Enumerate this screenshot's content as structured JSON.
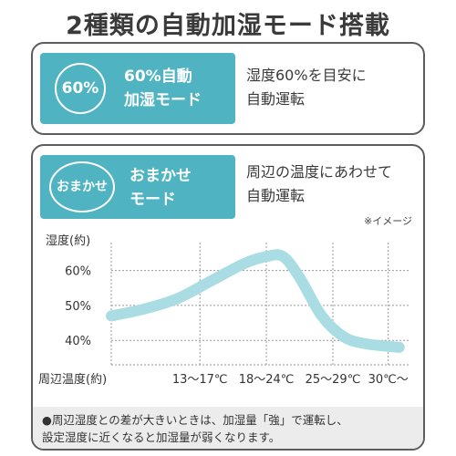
{
  "title": "2種類の自動加湿モード搭載",
  "card1": {
    "badge": "60%",
    "mode_line1": "60%自動",
    "mode_line2": "加湿モード",
    "desc_line1": "湿度60%を目安に",
    "desc_line2": "自動運転"
  },
  "card2": {
    "badge": "おまかせ",
    "mode_line1": "おまかせ",
    "mode_line2": "モード",
    "desc_line1": "周辺の温度にあわせて",
    "desc_line2": "自動運転",
    "image_note": "※イメージ"
  },
  "chart_data": {
    "type": "line",
    "ylabel": "湿度(約)",
    "xlabel": "周辺温度(約)",
    "y_ticks": [
      "60%",
      "50%",
      "40%"
    ],
    "y_tick_values": [
      60,
      50,
      40
    ],
    "x_ticks": [
      "13〜17℃",
      "18〜24℃",
      "25〜29℃",
      "30℃〜"
    ],
    "x_tick_values": [
      15,
      21,
      27,
      32
    ],
    "ylim": [
      33,
      68
    ],
    "xlim": [
      7,
      34
    ],
    "grid": true,
    "series": [
      {
        "x": [
          7,
          10,
          13,
          16,
          19,
          21,
          22.5,
          24,
          26,
          28,
          30,
          33
        ],
        "y": [
          47,
          49,
          52,
          57,
          62,
          64,
          64,
          58,
          47,
          41,
          39,
          38
        ]
      }
    ]
  },
  "colors": {
    "accent": "#4fb3c2",
    "curve": "#a9dde3"
  },
  "footer": {
    "line1": "●周辺湿度との差が大きいときは、加湿量「強」で運転し、",
    "line2": "設定湿度に近くなると加湿量が弱くなります。"
  }
}
